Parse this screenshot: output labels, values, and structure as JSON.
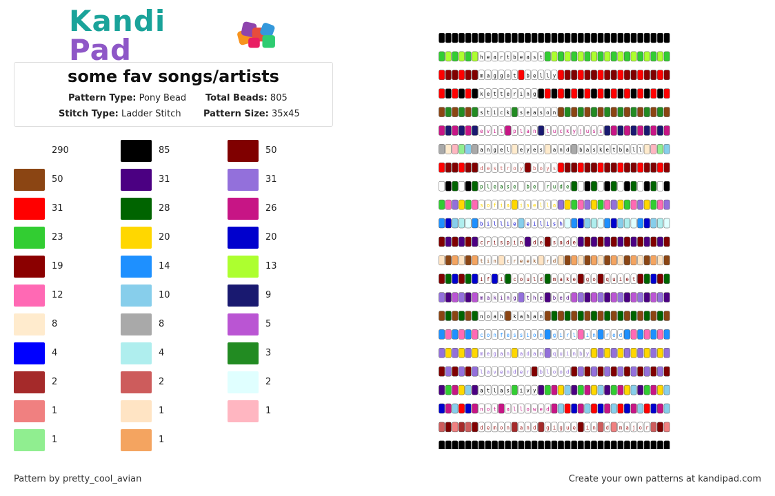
{
  "brand": {
    "name_part1": "Kandi",
    "name_part2": "Pad"
  },
  "pattern": {
    "title": "some fav songs/artists",
    "type_label": "Pattern Type:",
    "type_value": "Pony Bead",
    "total_label": "Total Beads:",
    "total_value": "805",
    "stitch_label": "Stitch Type:",
    "stitch_value": "Ladder Stitch",
    "size_label": "Pattern Size:",
    "size_value": "35x45"
  },
  "legend": [
    {
      "color": "#ffffff",
      "count": "290"
    },
    {
      "color": "#000000",
      "count": "85"
    },
    {
      "color": "#800000",
      "count": "50"
    },
    {
      "color": "#8b4513",
      "count": "50"
    },
    {
      "color": "#4b0082",
      "count": "31"
    },
    {
      "color": "#9370db",
      "count": "31"
    },
    {
      "color": "#ff0000",
      "count": "31"
    },
    {
      "color": "#006400",
      "count": "28"
    },
    {
      "color": "#c71585",
      "count": "26"
    },
    {
      "color": "#32cd32",
      "count": "23"
    },
    {
      "color": "#ffd700",
      "count": "20"
    },
    {
      "color": "#0000cd",
      "count": "20"
    },
    {
      "color": "#8b0000",
      "count": "19"
    },
    {
      "color": "#1e90ff",
      "count": "14"
    },
    {
      "color": "#adff2f",
      "count": "13"
    },
    {
      "color": "#ff69b4",
      "count": "12"
    },
    {
      "color": "#87ceeb",
      "count": "10"
    },
    {
      "color": "#191970",
      "count": "9"
    },
    {
      "color": "#ffebcd",
      "count": "8"
    },
    {
      "color": "#a9a9a9",
      "count": "8"
    },
    {
      "color": "#ba55d3",
      "count": "5"
    },
    {
      "color": "#0000ff",
      "count": "4"
    },
    {
      "color": "#afeeee",
      "count": "4"
    },
    {
      "color": "#228b22",
      "count": "3"
    },
    {
      "color": "#a52a2a",
      "count": "2"
    },
    {
      "color": "#cd5c5c",
      "count": "2"
    },
    {
      "color": "#e0ffff",
      "count": "2"
    },
    {
      "color": "#f08080",
      "count": "1"
    },
    {
      "color": "#ffe4c4",
      "count": "1"
    },
    {
      "color": "#ffb6c1",
      "count": "1"
    },
    {
      "color": "#90ee90",
      "count": "1"
    },
    {
      "color": "#f4a460",
      "count": "1"
    }
  ],
  "grid_rows": [
    {
      "text": "",
      "colors": [
        "#000000"
      ],
      "text_color": "#000000"
    },
    {
      "text": "heartbeast",
      "colors": [
        "#32cd32",
        "#adff2f"
      ],
      "text_color": "#000000"
    },
    {
      "text": "maggot belly",
      "colors": [
        "#ff0000",
        "#8b0000",
        "#800000"
      ],
      "text_color": "#000000"
    },
    {
      "text": "kettering",
      "colors": [
        "#ff0000",
        "#000000"
      ],
      "text_color": "#000000"
    },
    {
      "text": "stick season",
      "colors": [
        "#8b4513",
        "#228b22"
      ],
      "text_color": "#000000"
    },
    {
      "text": "evil plan luckyjuss",
      "colors": [
        "#c71585",
        "#191970"
      ],
      "text_color": "#c71585"
    },
    {
      "text": "angel eyes and basketball",
      "colors": [
        "#a9a9a9",
        "#ffebcd",
        "#ffb6c1",
        "#90ee90",
        "#87ceeb"
      ],
      "text_color": "#000000"
    },
    {
      "text": "destroy boys",
      "colors": [
        "#ff0000",
        "#8b0000",
        "#800000"
      ],
      "text_color": "#cd5c5c"
    },
    {
      "text": "please be rude",
      "colors": [
        "#ffffff",
        "#000000",
        "#006400"
      ],
      "text_color": "#006400"
    },
    {
      "text": "sofia isella",
      "colors": [
        "#32cd32",
        "#ff69b4",
        "#9370db",
        "#ffd700"
      ],
      "text_color": "#ffd700"
    },
    {
      "text": "billie eilish",
      "colors": [
        "#1e90ff",
        "#0000cd",
        "#87ceeb",
        "#afeeee",
        "#e0ffff"
      ],
      "text_color": "#0000cd"
    },
    {
      "text": "crispin de sade",
      "colors": [
        "#800000",
        "#4b0082"
      ],
      "text_color": "#800000"
    },
    {
      "text": "tin creek rd",
      "colors": [
        "#ffe4c4",
        "#8b4513",
        "#f4a460"
      ],
      "text_color": "#8b4513"
    },
    {
      "text": "if i could make go quiet",
      "colors": [
        "#800000",
        "#006400",
        "#0000cd"
      ],
      "text_color": "#800000"
    },
    {
      "text": "making the bed",
      "colors": [
        "#9370db",
        "#4b0082",
        "#ba55d3"
      ],
      "text_color": "#4b0082"
    },
    {
      "text": "noah kahan",
      "colors": [
        "#8b4513",
        "#006400"
      ],
      "text_color": "#000000"
    },
    {
      "text": "confession girl in red",
      "colors": [
        "#1e90ff",
        "#ff69b4"
      ],
      "text_color": "#1e90ff"
    },
    {
      "text": "megan adam quinby",
      "colors": [
        "#9370db",
        "#ffd700"
      ],
      "text_color": "#9370db"
    },
    {
      "text": "lavender blood",
      "colors": [
        "#800000",
        "#9370db"
      ],
      "text_color": "#9370db"
    },
    {
      "text": "atlas ivy",
      "colors": [
        "#4b0082",
        "#32cd32",
        "#c71585",
        "#ffd700",
        "#87ceeb"
      ],
      "text_color": "#000000"
    },
    {
      "text": "not allowed",
      "colors": [
        "#0000cd",
        "#c71585",
        "#87ceeb",
        "#ff0000"
      ],
      "text_color": "#c71585"
    },
    {
      "text": "demon and gigue in d major",
      "colors": [
        "#cd5c5c",
        "#800000",
        "#f08080",
        "#a52a2a"
      ],
      "text_color": "#a52a2a"
    },
    {
      "text": "",
      "colors": [
        "#000000"
      ],
      "text_color": "#000000"
    }
  ],
  "footer": {
    "credit": "Pattern by pretty_cool_avian",
    "cta": "Create your own patterns at kandipad.com"
  }
}
